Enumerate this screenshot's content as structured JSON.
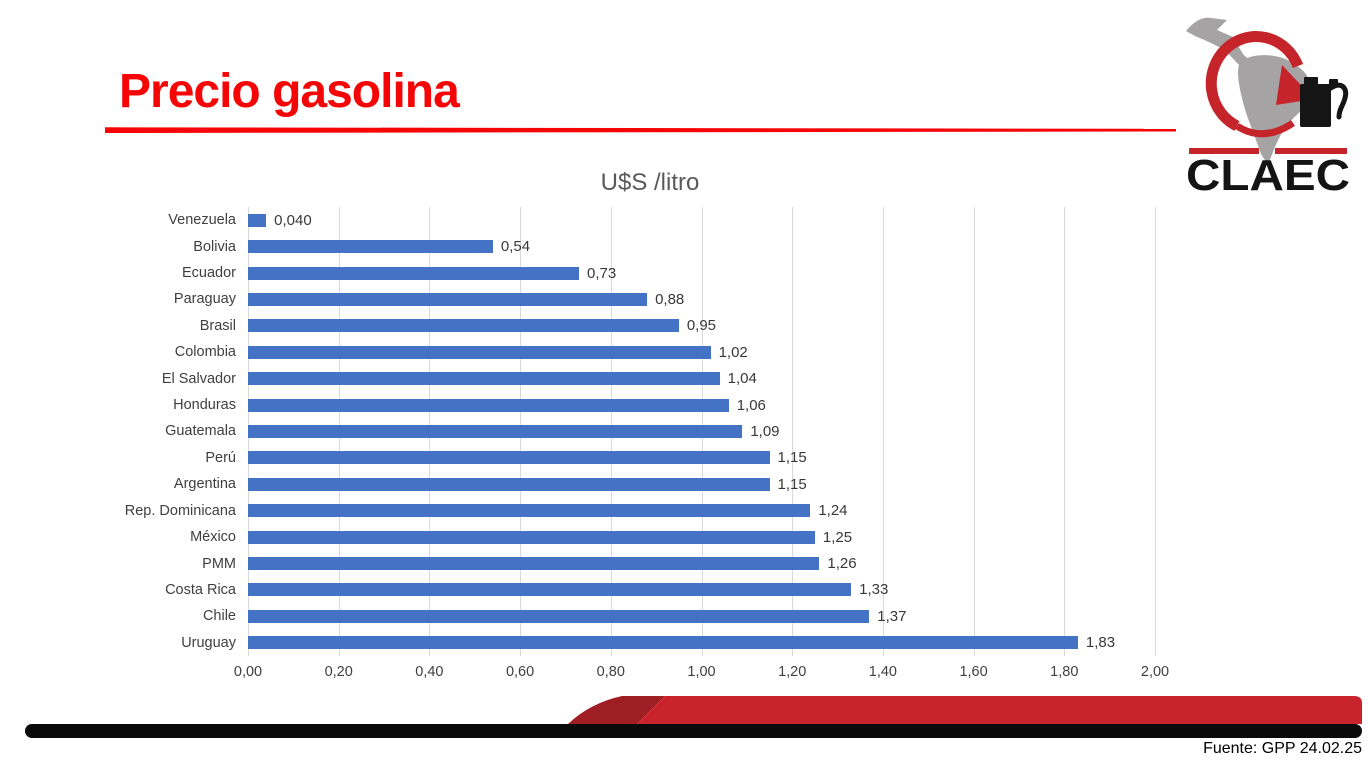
{
  "slide": {
    "title": "Precio gasolina",
    "footer": "Fuente: GPP 24.02.25"
  },
  "logo": {
    "text": "CLAEC",
    "icons": [
      "latin-america-map",
      "red-circular-arrow",
      "fuel-pump"
    ],
    "gray": "#a5a3a4",
    "red": "#c4242a",
    "black": "#141414"
  },
  "colors": {
    "title_red": "#f50506",
    "bar_blue": "#4472c4",
    "gridline": "#d9d9d9",
    "label_gray": "#3f3f3f",
    "chart_title_gray": "#595959",
    "swoosh_red": "#c9232b",
    "swoosh_dark_red": "#9e1e23",
    "bottom_bar_black": "#0a0a0a"
  },
  "chart_data": {
    "type": "bar",
    "orientation": "horizontal",
    "title": "U$S /litro",
    "categories": [
      "Venezuela",
      "Bolivia",
      "Ecuador",
      "Paraguay",
      "Brasil",
      "Colombia",
      "El Salvador",
      "Honduras",
      "Guatemala",
      "Perú",
      "Argentina",
      "Rep. Dominicana",
      "México",
      "PMM",
      "Costa Rica",
      "Chile",
      "Uruguay"
    ],
    "values": [
      0.04,
      0.54,
      0.73,
      0.88,
      0.95,
      1.02,
      1.04,
      1.06,
      1.09,
      1.15,
      1.15,
      1.24,
      1.25,
      1.26,
      1.33,
      1.37,
      1.83
    ],
    "value_labels": [
      "0,040",
      "0,54",
      "0,73",
      "0,88",
      "0,95",
      "1,02",
      "1,04",
      "1,06",
      "1,09",
      "1,15",
      "1,15",
      "1,24",
      "1,25",
      "1,26",
      "1,33",
      "1,37",
      "1,83"
    ],
    "xlim": [
      0,
      2
    ],
    "x_ticks": [
      "0,00",
      "0,20",
      "0,40",
      "0,60",
      "0,80",
      "1,00",
      "1,20",
      "1,40",
      "1,60",
      "1,80",
      "2,00"
    ],
    "grid": true,
    "legend": false,
    "xlabel": "",
    "ylabel": ""
  }
}
